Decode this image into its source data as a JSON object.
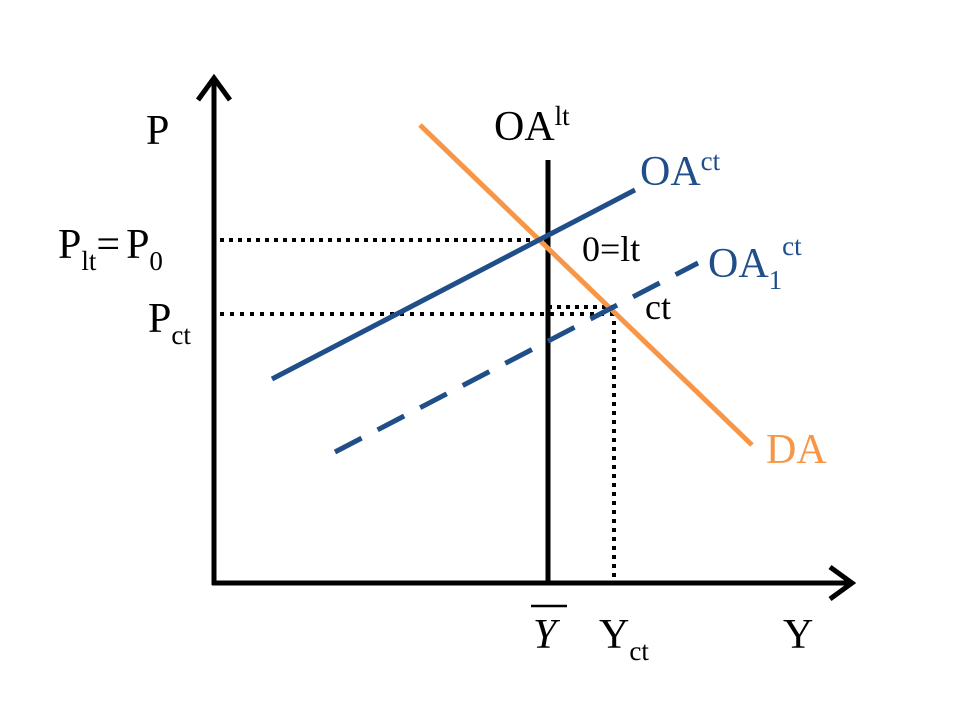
{
  "axes": {
    "y_label": "P",
    "x_label": "Y"
  },
  "curves": {
    "oa_lt": {
      "base": "OA",
      "sup": "lt"
    },
    "oa_ct": {
      "base": "OA",
      "sup": "ct"
    },
    "oa1_ct": {
      "base": "OA",
      "sub": "1",
      "sup": "ct"
    },
    "da": {
      "label": "DA"
    }
  },
  "points": {
    "eq0": "0=lt",
    "eq_ct": "ct"
  },
  "y_ticks": {
    "p_lt": {
      "base": "P",
      "sub": "lt"
    },
    "equals": "=",
    "p_0": {
      "base": "P",
      "sub": "0"
    },
    "p_ct": {
      "base": "P",
      "sub": "ct"
    }
  },
  "x_ticks": {
    "y_bar": "Y",
    "y_ct": {
      "base": "Y",
      "sub": "ct"
    }
  },
  "colors": {
    "axis": "#000000",
    "oa_ct": "#1f4e89",
    "da": "#f79646",
    "oa_lt": "#000000",
    "guides": "#000000"
  }
}
